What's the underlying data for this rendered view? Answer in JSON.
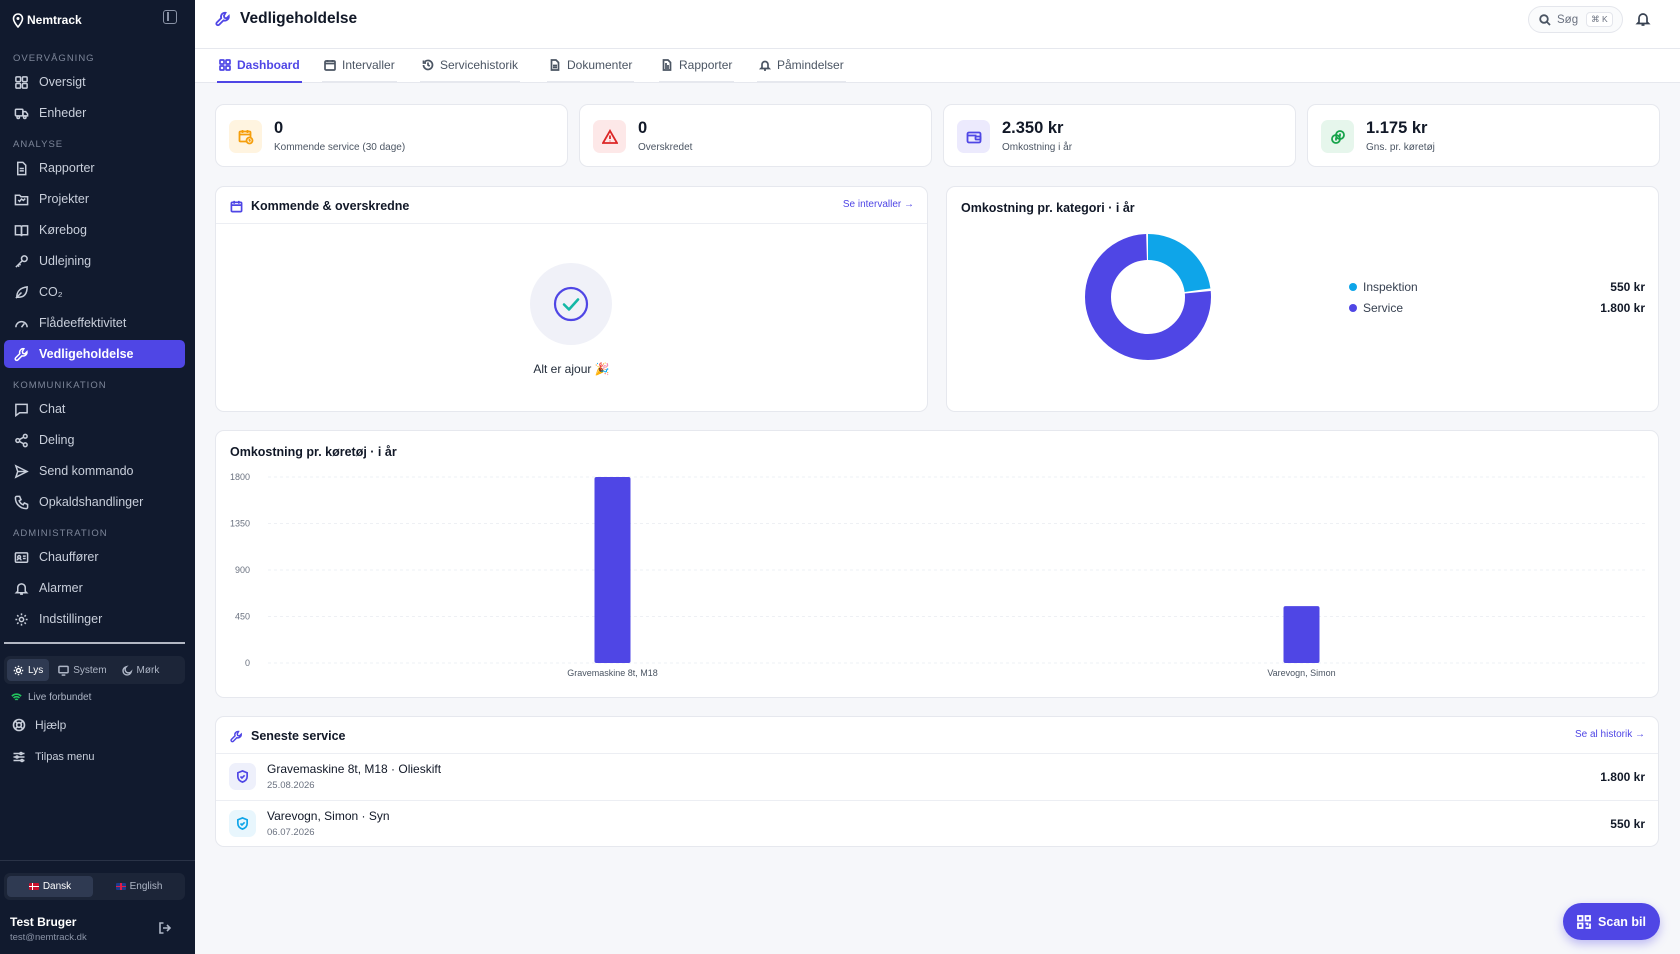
{
  "brand": {
    "name": "Nemtrack"
  },
  "sidebar": {
    "sections": {
      "monitoring": "OVERVÅGNING",
      "analysis": "ANALYSE",
      "communication": "KOMMUNIKATION",
      "administration": "ADMINISTRATION"
    },
    "items": [
      {
        "key": "oversigt",
        "label": "Oversigt",
        "icon": "grid-icon"
      },
      {
        "key": "enheder",
        "label": "Enheder",
        "icon": "truck-icon"
      },
      {
        "key": "rapporter",
        "label": "Rapporter",
        "icon": "document-icon"
      },
      {
        "key": "projekter",
        "label": "Projekter",
        "icon": "folder-icon"
      },
      {
        "key": "korebog",
        "label": "Kørebog",
        "icon": "book-icon"
      },
      {
        "key": "udlejning",
        "label": "Udlejning",
        "icon": "key-icon"
      },
      {
        "key": "co2",
        "label": "CO₂",
        "icon": "leaf-icon"
      },
      {
        "key": "fladeeffektivitet",
        "label": "Flådeeffektivitet",
        "icon": "gauge-icon"
      },
      {
        "key": "vedligeholdelse",
        "label": "Vedligeholdelse",
        "icon": "wrench-icon",
        "active": true
      },
      {
        "key": "chat",
        "label": "Chat",
        "icon": "chat-icon"
      },
      {
        "key": "deling",
        "label": "Deling",
        "icon": "share-icon"
      },
      {
        "key": "send-kommando",
        "label": "Send kommando",
        "icon": "send-icon"
      },
      {
        "key": "opkaldshandlinger",
        "label": "Opkaldshandlinger",
        "icon": "phone-icon"
      },
      {
        "key": "chauffoerer",
        "label": "Chauffører",
        "icon": "id-card-icon"
      },
      {
        "key": "alarmer",
        "label": "Alarmer",
        "icon": "bell-icon"
      },
      {
        "key": "indstillinger",
        "label": "Indstillinger",
        "icon": "gear-icon"
      }
    ],
    "theme": {
      "light": "Lys",
      "system": "System",
      "dark": "Mørk",
      "selected": "Lys"
    },
    "status": "Live forbundet",
    "help": "Hjælp",
    "customize": "Tilpas menu",
    "languages": {
      "danish": "Dansk",
      "english": "English",
      "selected": "Dansk"
    },
    "user": {
      "name": "Test Bruger",
      "email": "test@nemtrack.dk"
    }
  },
  "header": {
    "title": "Vedligeholdelse",
    "search": {
      "label": "Søg",
      "shortcut": "⌘ K"
    }
  },
  "tabs": [
    {
      "label": "Dashboard",
      "icon": "grid-icon",
      "active": true
    },
    {
      "label": "Intervaller",
      "icon": "calendar-clock-icon"
    },
    {
      "label": "Servicehistorik",
      "icon": "history-icon"
    },
    {
      "label": "Dokumenter",
      "icon": "document-icon"
    },
    {
      "label": "Rapporter",
      "icon": "report-icon"
    },
    {
      "label": "Påmindelser",
      "icon": "bell-icon"
    }
  ],
  "kpis": [
    {
      "value": "0",
      "label": "Kommende service (30 dage)",
      "icon": "calendar-clock-icon",
      "color": "#f59e0b",
      "bg": "#fff4e0"
    },
    {
      "value": "0",
      "label": "Overskredet",
      "icon": "warning-icon",
      "color": "#dc2626",
      "bg": "#fde8e8"
    },
    {
      "value": "2.350 kr",
      "label": "Omkostning i år",
      "icon": "wallet-icon",
      "color": "#4f46e5",
      "bg": "#eceafd"
    },
    {
      "value": "1.175 kr",
      "label": "Gns. pr. køretøj",
      "icon": "coins-icon",
      "color": "#16a34a",
      "bg": "#e6f6ec"
    }
  ],
  "upcoming": {
    "title": "Kommende & overskredne",
    "link": "Se intervaller →",
    "empty_text": "Alt er ajour 🎉"
  },
  "category_costs": {
    "title": "Omkostning pr. kategori · i år",
    "items": [
      {
        "name": "Inspektion",
        "value": "550 kr",
        "color": "#0ea5e9"
      },
      {
        "name": "Service",
        "value": "1.800 kr",
        "color": "#4f46e5"
      }
    ]
  },
  "vehicle_costs": {
    "title": "Omkostning pr. køretøj · i år"
  },
  "chart_data": [
    {
      "type": "pie",
      "title": "Omkostning pr. kategori · i år",
      "categories": [
        "Inspektion",
        "Service"
      ],
      "values": [
        550,
        1800
      ],
      "colors": [
        "#0ea5e9",
        "#4f46e5"
      ],
      "legend": "right"
    },
    {
      "type": "bar",
      "title": "Omkostning pr. køretøj · i år",
      "categories": [
        "Gravemaskine 8t, M18",
        "Varevogn, Simon"
      ],
      "values": [
        1800,
        550
      ],
      "yticks": [
        0,
        450,
        900,
        1350,
        1800
      ],
      "ylim": [
        0,
        1800
      ],
      "grid": true,
      "color": "#4f46e5"
    }
  ],
  "latest_service": {
    "title": "Seneste service",
    "link": "Se al historik →",
    "rows": [
      {
        "title": "Gravemaskine 8t, M18 · Olieskift",
        "date": "25.08.2026",
        "amount": "1.800 kr",
        "color": "#4f46e5"
      },
      {
        "title": "Varevogn, Simon · Syn",
        "date": "06.07.2026",
        "amount": "550 kr",
        "color": "#0ea5e9"
      }
    ]
  },
  "fab": {
    "label": "Scan bil"
  }
}
